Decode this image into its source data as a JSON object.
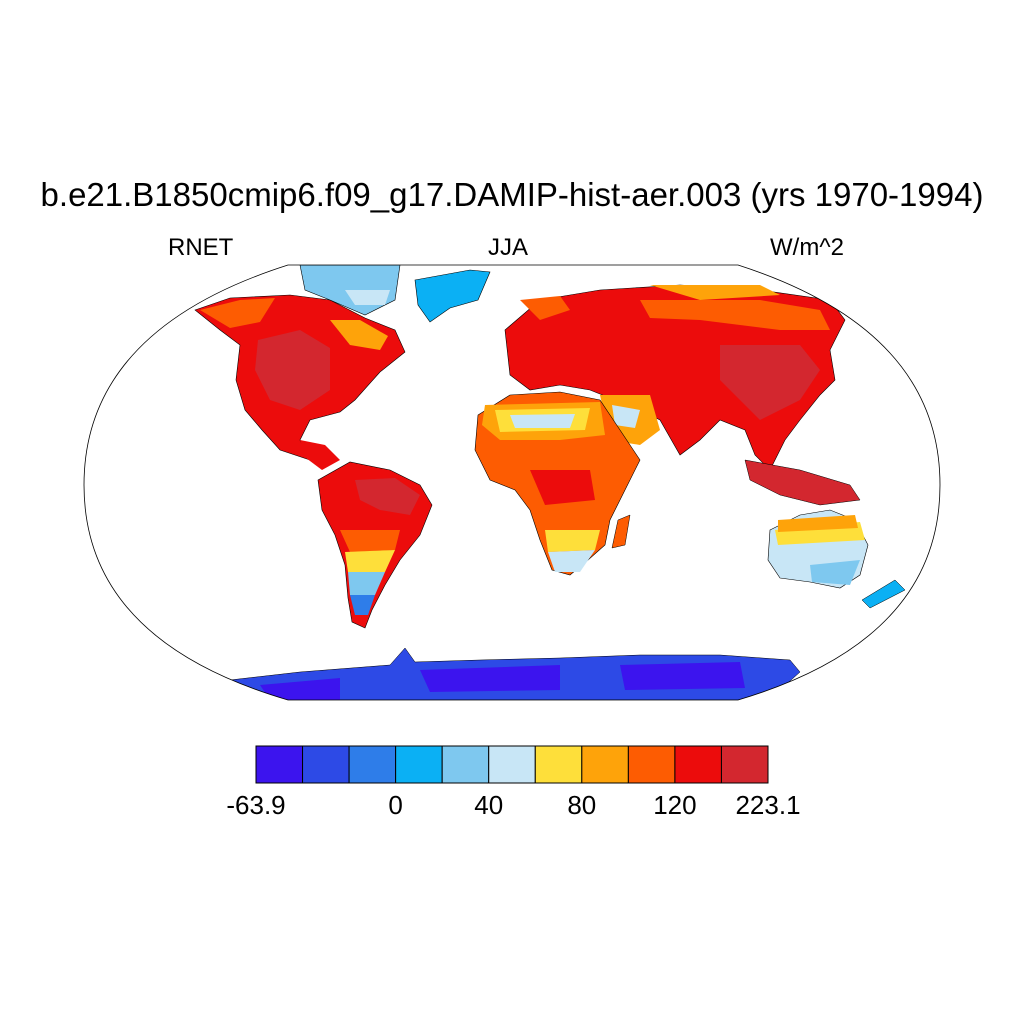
{
  "header": {
    "title": "b.e21.B1850cmip6.f09_g17.DAMIP-hist-aer.003 (yrs 1970-1994)",
    "left_label": "RNET",
    "center_label": "JJA",
    "right_label": "W/m^2"
  },
  "colorbar": {
    "colors": [
      "#3c14ee",
      "#2d4ae6",
      "#2e7de9",
      "#0bb0f4",
      "#7ec8ef",
      "#c8e6f6",
      "#fedf3a",
      "#fea30a",
      "#fd5c02",
      "#ec0c0c",
      "#d3272f"
    ],
    "tick_labels": [
      "-63.9",
      "0",
      "40",
      "80",
      "120",
      "223.1"
    ]
  },
  "map": {
    "projection": "Robinson",
    "fill_colors": {
      "ocean": "#ffffff",
      "coast": "#000000"
    }
  }
}
